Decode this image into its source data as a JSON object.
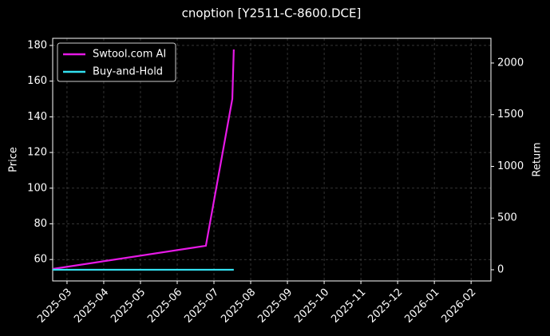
{
  "chart_data": {
    "type": "line",
    "title": "cnoption [Y2511-C-8600.DCE]",
    "y_label": "Price",
    "y2_label": "Return",
    "x": [
      -0.39,
      3.78,
      4.5,
      4.54
    ],
    "series": [
      {
        "name": "Swtool.com AI",
        "color": "#e619e6",
        "axis": "y2",
        "values": [
          8,
          232,
          1653,
          2131
        ]
      },
      {
        "name": "Buy-and-Hold",
        "color": "#33e0f0",
        "axis": "y2",
        "values": [
          0,
          0,
          0,
          0
        ]
      }
    ],
    "xlim": [
      -0.39,
      11.54
    ],
    "xticks": [
      {
        "value": 0,
        "label": "2025-03"
      },
      {
        "value": 1,
        "label": "2025-04"
      },
      {
        "value": 2,
        "label": "2025-05"
      },
      {
        "value": 3,
        "label": "2025-06"
      },
      {
        "value": 4,
        "label": "2025-07"
      },
      {
        "value": 5,
        "label": "2025-08"
      },
      {
        "value": 6,
        "label": "2025-09"
      },
      {
        "value": 7,
        "label": "2025-10"
      },
      {
        "value": 8,
        "label": "2025-11"
      },
      {
        "value": 9,
        "label": "2025-12"
      },
      {
        "value": 10,
        "label": "2026-01"
      },
      {
        "value": 11,
        "label": "2026-02"
      }
    ],
    "ylim": [
      48,
      184
    ],
    "yticks": [
      60,
      80,
      100,
      120,
      140,
      160,
      180
    ],
    "y2lim": [
      -108,
      2239
    ],
    "y2ticks": [
      0,
      500,
      1000,
      1500,
      2000
    ],
    "grid": true,
    "legend": "upper-left"
  }
}
